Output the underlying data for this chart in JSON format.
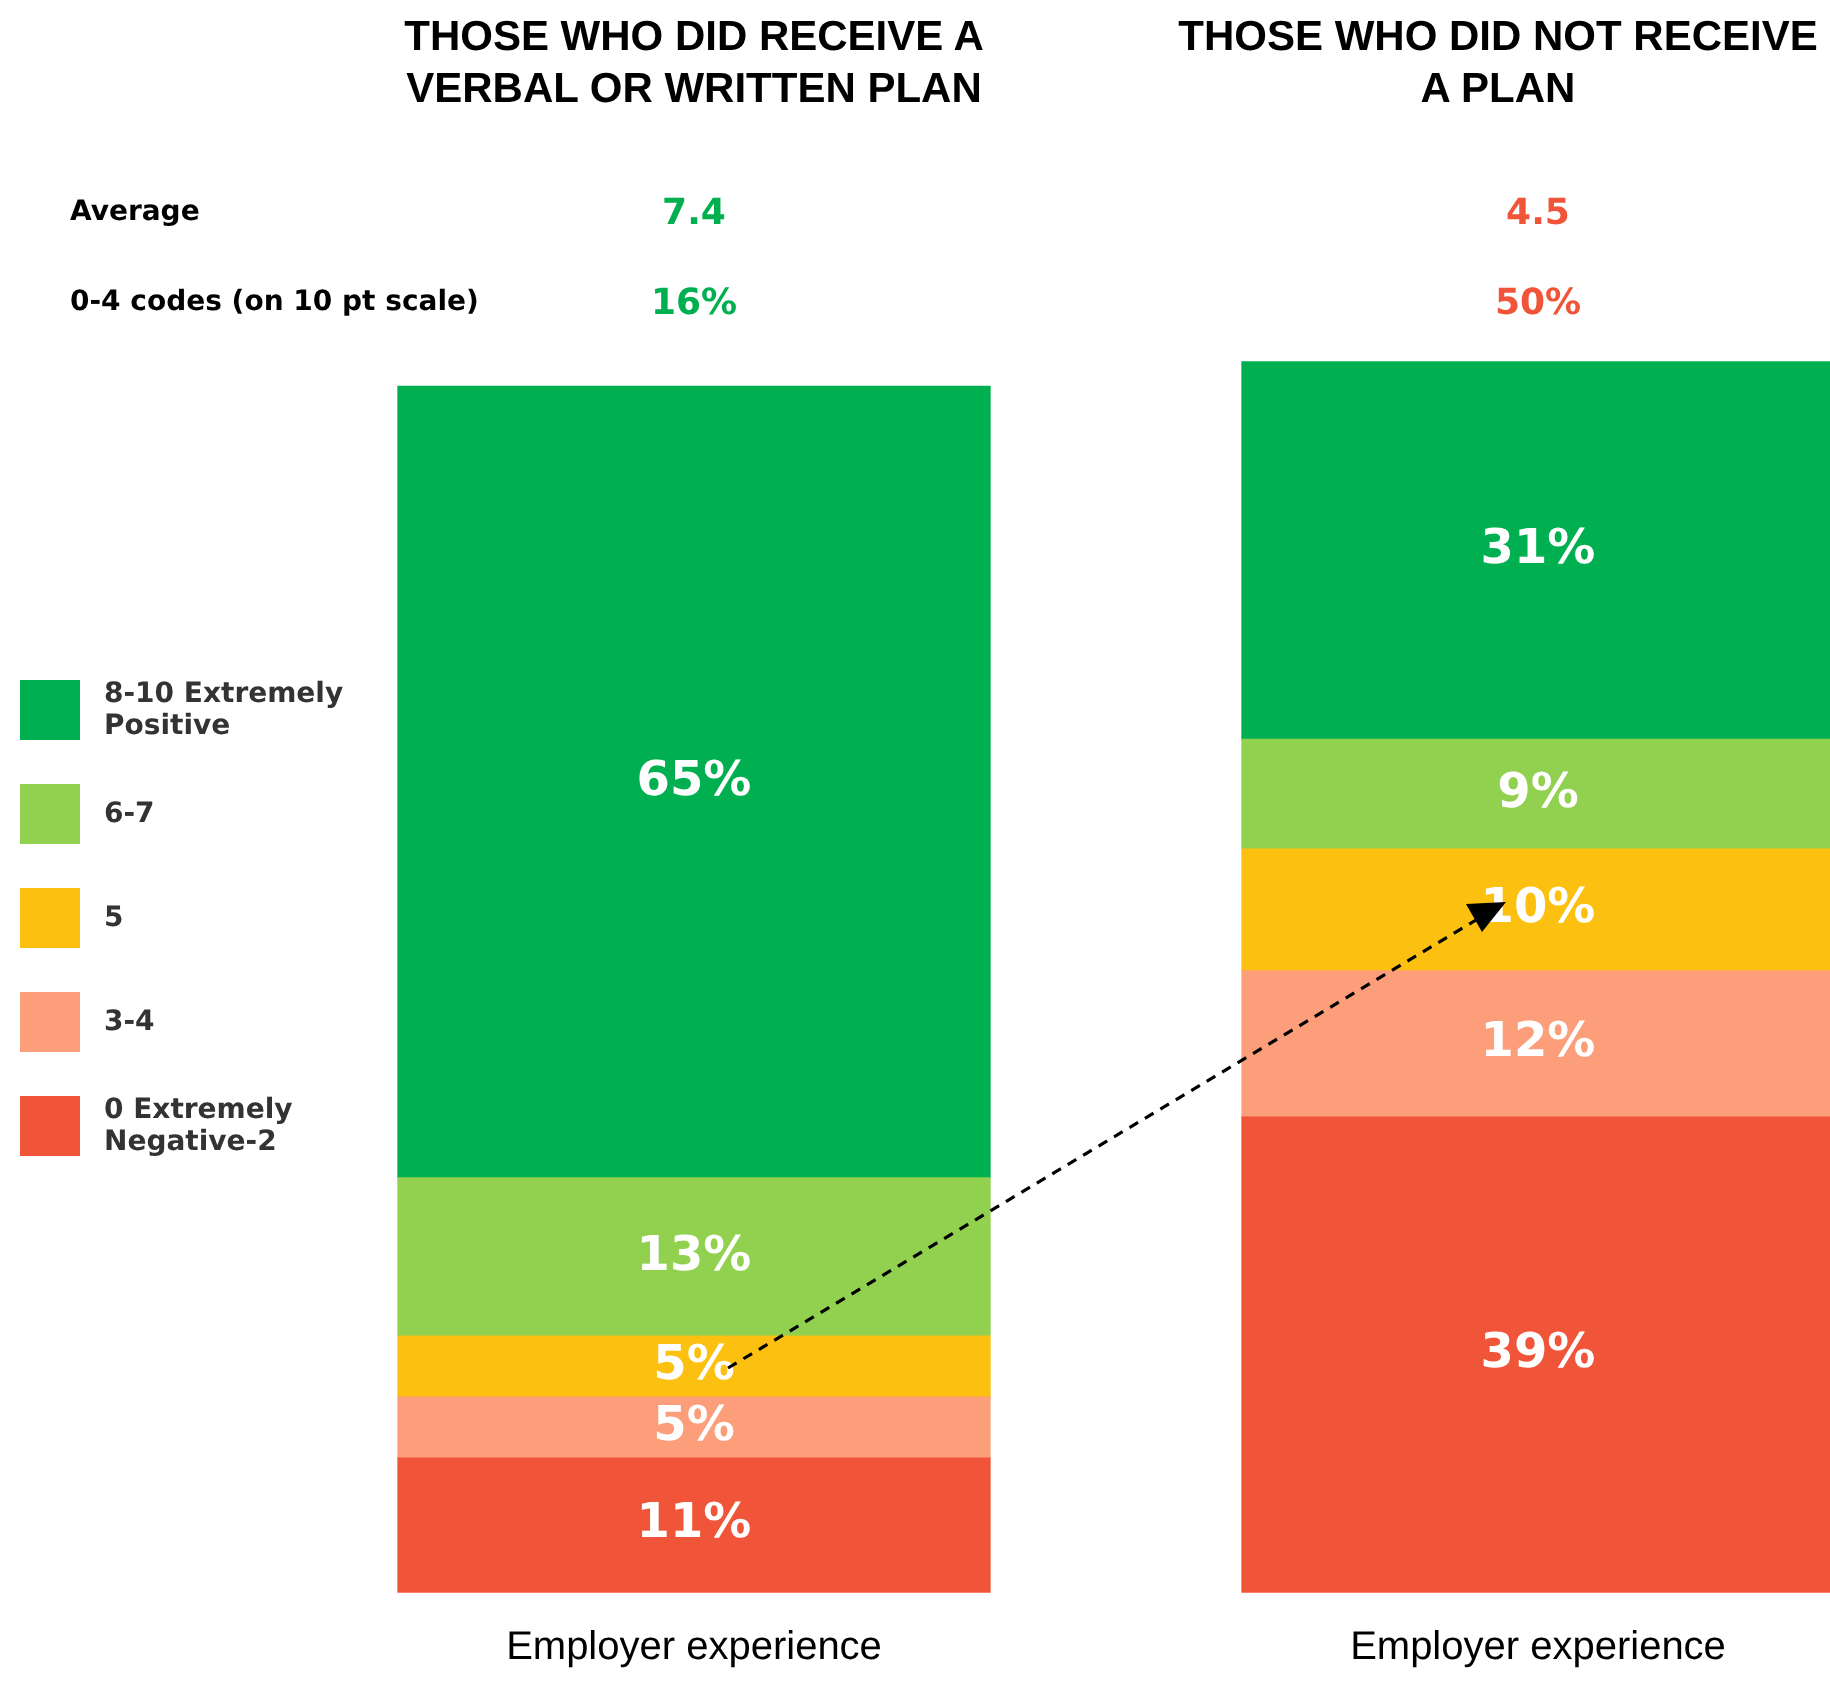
{
  "chart_data": {
    "type": "bar",
    "categories": [
      "Employer experience",
      "Employer experience"
    ],
    "stacked": true,
    "legend": "left",
    "tick_labels": "x",
    "annotations": [
      "THOSE WHO DID RECEIVE A VERBAL OR WRITTEN PLAN",
      "THOSE WHO DID NOT RECEIVE A PLAN",
      "Average",
      "7.4",
      "4.5",
      "0-4 codes (on 10 pt scale)",
      "16%",
      "50%"
    ],
    "series": [
      {
        "name": "0 Extremely Negative-2",
        "color": "#f0553a",
        "values": [
          11,
          39
        ],
        "value_labels": [
          "11%",
          "39%"
        ]
      },
      {
        "name": "3-4",
        "color": "#fc9e7a",
        "values": [
          5,
          12
        ],
        "value_labels": [
          "5%",
          "12%"
        ]
      },
      {
        "name": "5",
        "color": "#fcc010",
        "values": [
          5,
          10
        ],
        "value_labels": [
          "5%",
          "10%"
        ]
      },
      {
        "name": "6-7",
        "color": "#92d050",
        "values": [
          13,
          9
        ],
        "value_labels": [
          "13%",
          "9%"
        ]
      },
      {
        "name": "8-10 Extremely Positive",
        "color": "#00b050",
        "values": [
          65,
          31
        ],
        "value_labels": [
          "65%",
          "31%"
        ]
      }
    ]
  }
}
